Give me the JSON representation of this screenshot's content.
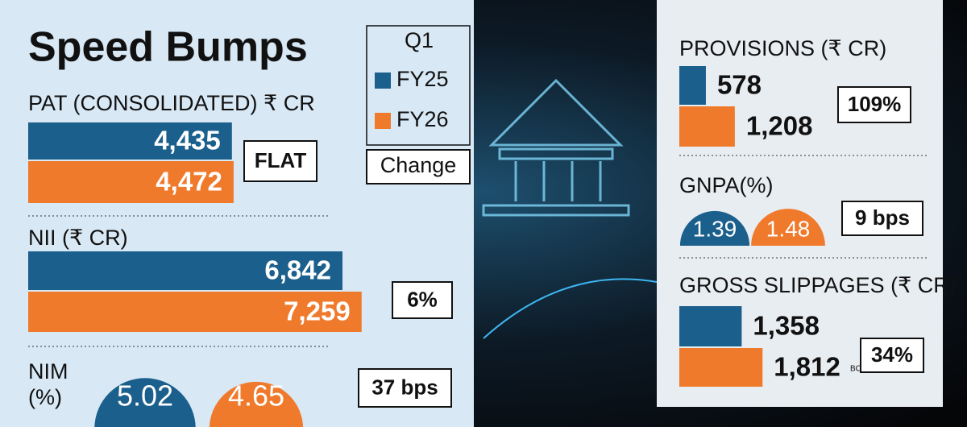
{
  "title": "Speed Bumps",
  "legend": {
    "title": "Q1",
    "series": [
      {
        "name": "FY25",
        "color": "#1b5f8c"
      },
      {
        "name": "FY26",
        "color": "#f07a2b"
      }
    ],
    "change": "Change"
  },
  "panels": [
    {
      "label": "PAT (CONSOLIDATED) ₹ CR",
      "values": [
        4435,
        4472
      ],
      "value_labels": [
        "4,435",
        "4,472"
      ],
      "change": "FLAT"
    },
    {
      "label": "NII (₹ CR)",
      "values": [
        6842,
        7259
      ],
      "value_labels": [
        "6,842",
        "7,259"
      ],
      "change": "6%"
    },
    {
      "label": "NIM (%)",
      "values": [
        5.02,
        4.65
      ],
      "change": "37 bps"
    },
    {
      "label": "PROVISIONS (₹ CR)",
      "values": [
        578,
        1208
      ],
      "value_labels": [
        "578",
        "1,208"
      ],
      "change": "109%"
    },
    {
      "label": "GNPA(%)",
      "values": [
        1.39,
        1.48
      ],
      "change": "9 bps"
    },
    {
      "label": "GROSS SLIPPAGES (₹ CR)",
      "values": [
        1358,
        1812
      ],
      "value_labels": [
        "1,358",
        "1,812"
      ],
      "change": "34%"
    }
  ],
  "watermark": "BCCL"
}
